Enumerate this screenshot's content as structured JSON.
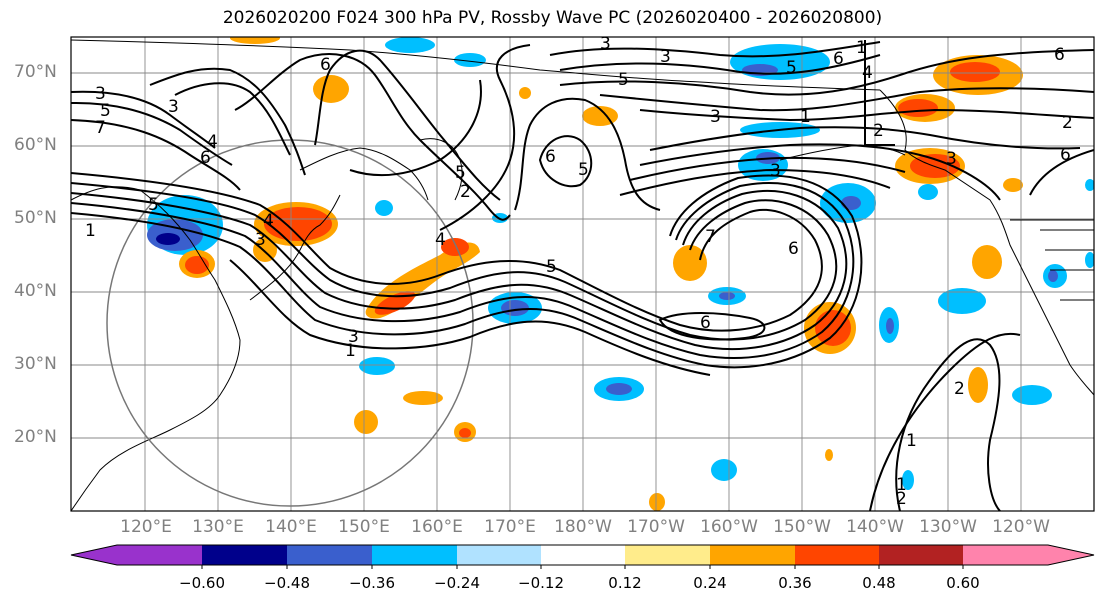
{
  "title": "2026020200 F024 300 hPa PV, Rossby Wave PC (2026020400 - 2026020800)",
  "lat_labels": [
    "70°N",
    "60°N",
    "50°N",
    "40°N",
    "30°N",
    "20°N"
  ],
  "lon_labels": [
    "120°E",
    "130°E",
    "140°E",
    "150°E",
    "160°E",
    "170°E",
    "180°W",
    "170°W",
    "160°W",
    "150°W",
    "140°W",
    "130°W",
    "120°W"
  ],
  "colorbar": {
    "colors": [
      "#9932cc",
      "#00008b",
      "#3a5fcd",
      "#00bfff",
      "#b0e2ff",
      "#ffffff",
      "#ffec8b",
      "#ffa500",
      "#ff4500",
      "#b22222",
      "#ff83ac"
    ],
    "ticks": [
      "−0.60",
      "−0.48",
      "−0.36",
      "−0.24",
      "−0.12",
      "0.12",
      "0.24",
      "0.36",
      "0.48",
      "0.60"
    ]
  },
  "contour_labels": [
    "1",
    "3",
    "5",
    "7",
    "6",
    "4",
    "3",
    "6",
    "5",
    "4",
    "5",
    "3",
    "1",
    "5",
    "7",
    "6",
    "3",
    "4",
    "2",
    "5",
    "6",
    "3",
    "6",
    "5",
    "4",
    "3",
    "2",
    "1",
    "3",
    "5",
    "6",
    "1",
    "3",
    "6",
    "2",
    "1",
    "2",
    "1",
    "2",
    "3",
    "6"
  ]
}
